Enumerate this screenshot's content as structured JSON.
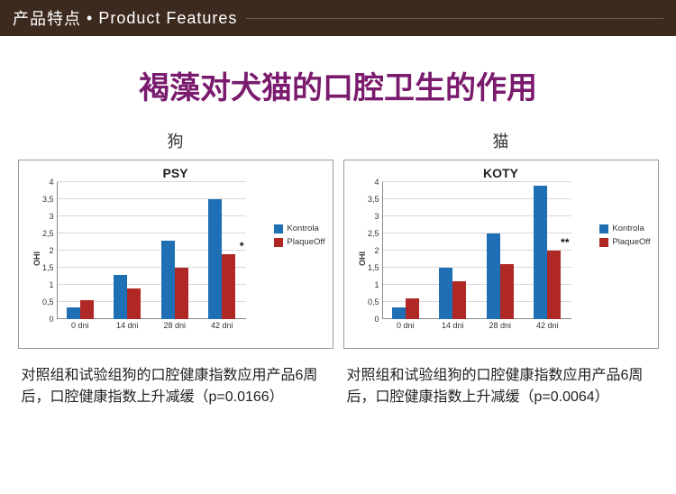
{
  "header": {
    "zh": "产品特点",
    "dot": "•",
    "en": "Product Features"
  },
  "title": "褐藻对犬猫的口腔卫生的作用",
  "legend": {
    "kontrola": {
      "label": "Kontrola",
      "color": "#1f6fb4"
    },
    "plaqueoff": {
      "label": "PlaqueOff",
      "color": "#b02826"
    }
  },
  "axes": {
    "ylabel": "OHI",
    "ymax": 4,
    "ytick_step": 0.5,
    "yticks": [
      "0",
      "0,5",
      "1",
      "1,5",
      "2",
      "2,5",
      "3",
      "3,5",
      "4"
    ],
    "categories": [
      "0 dni",
      "14 dni",
      "28 dni",
      "42 dni"
    ],
    "grid_color": "#d8d8d8"
  },
  "charts": [
    {
      "key": "dog",
      "label": "狗",
      "title": "PSY",
      "kontrola": [
        0.35,
        1.3,
        2.3,
        3.5
      ],
      "plaqueoff": [
        0.55,
        0.9,
        1.5,
        1.9
      ],
      "sig_marker": "*",
      "caption": "对照组和试验组狗的口腔健康指数应用产品6周后，口腔健康指数上升减缓（p=0.0166）"
    },
    {
      "key": "cat",
      "label": "猫",
      "title": "KOTY",
      "kontrola": [
        0.35,
        1.5,
        2.5,
        3.9
      ],
      "plaqueoff": [
        0.6,
        1.1,
        1.6,
        2.0
      ],
      "sig_marker": "**",
      "caption": "对照组和试验组狗的口腔健康指数应用产品6周后，口腔健康指数上升减缓（p=0.0064）"
    }
  ]
}
